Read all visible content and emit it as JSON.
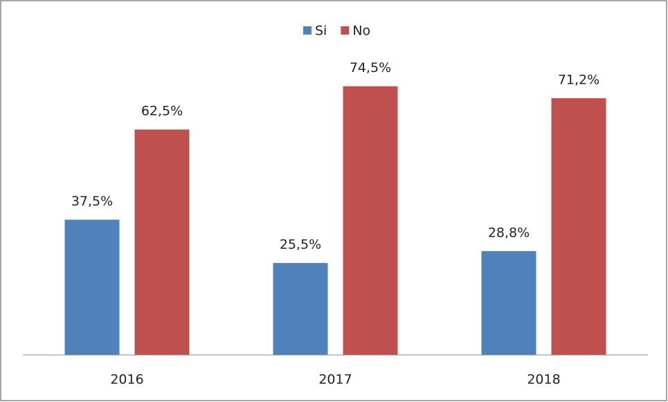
{
  "chart_data": {
    "type": "bar",
    "categories": [
      "2016",
      "2017",
      "2018"
    ],
    "series": [
      {
        "name": "Si",
        "color": "#4f81bd",
        "values": [
          37.5,
          25.5,
          28.8
        ],
        "value_labels": [
          "37,5%",
          "25,5%",
          "28,8%"
        ]
      },
      {
        "name": "No",
        "color": "#c0504d",
        "values": [
          62.5,
          74.5,
          71.2
        ],
        "value_labels": [
          "62,5%",
          "74,5%",
          "71,2%"
        ]
      }
    ],
    "ylim": [
      0,
      80
    ],
    "legend": "top"
  }
}
